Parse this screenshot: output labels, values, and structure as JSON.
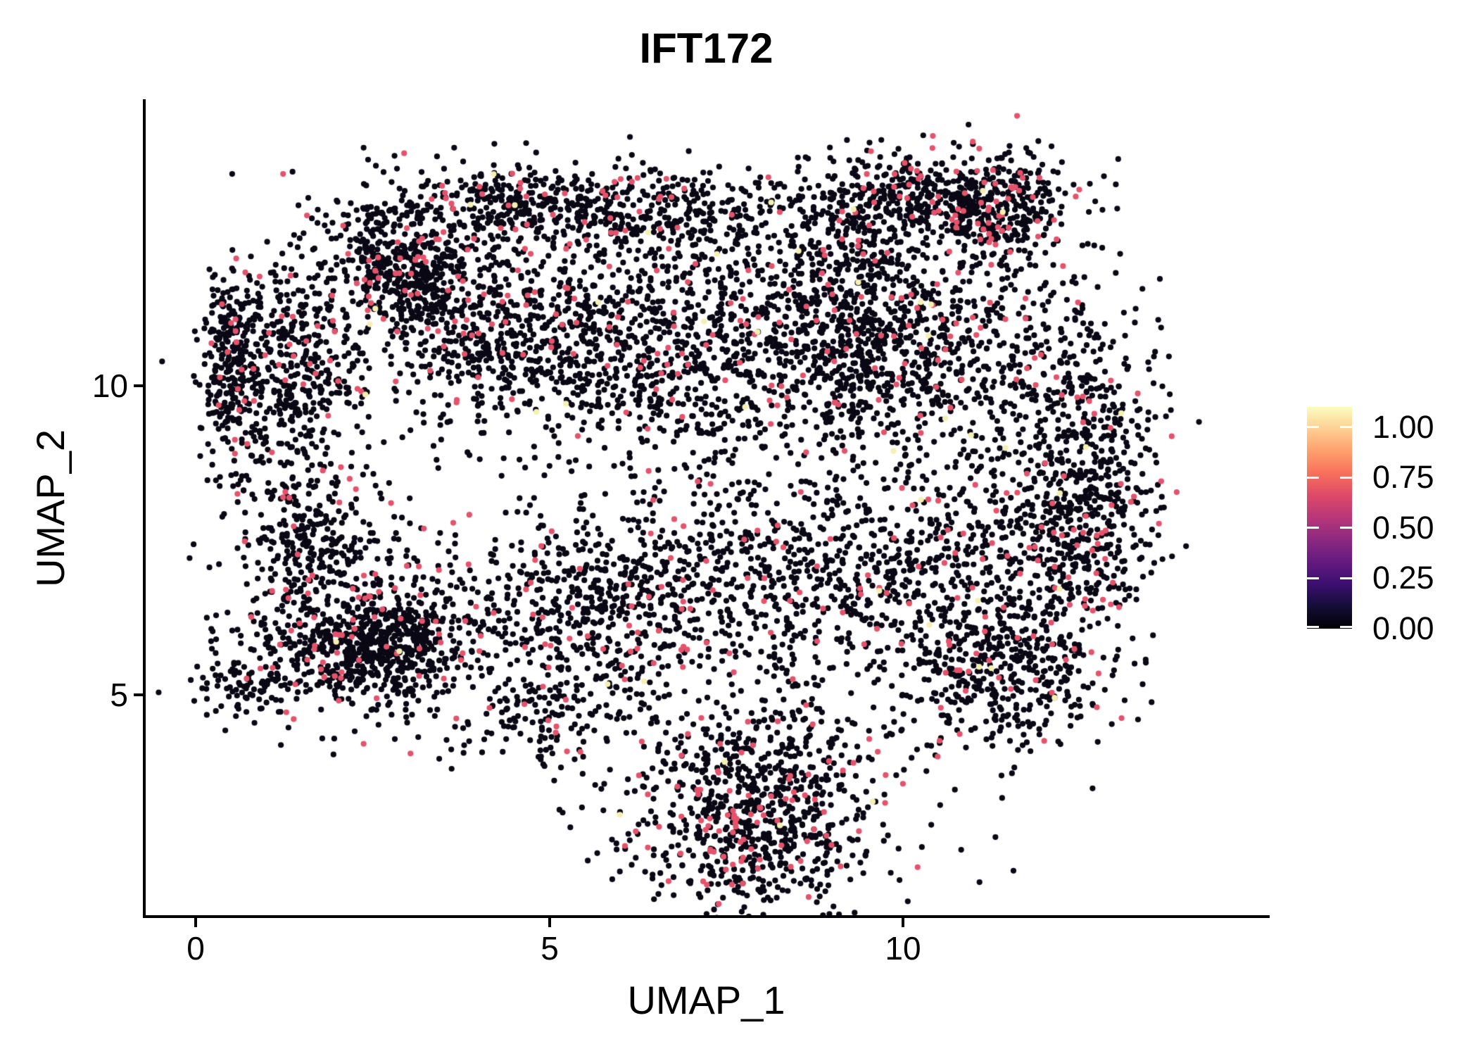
{
  "chart_data": {
    "type": "scatter",
    "title": "IFT172",
    "xlabel": "UMAP_1",
    "ylabel": "UMAP_2",
    "x_domain": [
      -0.73,
      15.16
    ],
    "y_domain": [
      1.41,
      14.61
    ],
    "grid": false,
    "background": "#ffffff",
    "axis_color": "#000000",
    "x_ticks": [
      {
        "value": 0,
        "label": "0"
      },
      {
        "value": 5,
        "label": "5"
      },
      {
        "value": 10,
        "label": "10"
      }
    ],
    "y_ticks": [
      {
        "value": 5,
        "label": "5"
      },
      {
        "value": 10,
        "label": "10"
      }
    ],
    "point_radius_px": 4.1,
    "n_points": 10190,
    "point_colors": {
      "black": "#0A0814",
      "pink": "#E4536B",
      "yellow": "#F5F0B2"
    },
    "color_meaning": {
      "black": "expression 0.00",
      "pink": "expression ~0.70",
      "yellow": "expression ~1.00"
    },
    "seed": 42,
    "default_pink_frac": 0.06,
    "default_yellow_frac": 0.004,
    "clusters": [
      {
        "cx": 0.5,
        "cy": 10.3,
        "sx": 0.2,
        "sy": 0.8,
        "n": 220,
        "pink": 0.08
      },
      {
        "cx": 1.25,
        "cy": 10.35,
        "sx": 0.55,
        "sy": 0.9,
        "n": 480,
        "pink": 0.06
      },
      {
        "cx": 1.6,
        "cy": 7.6,
        "sx": 0.55,
        "sy": 0.6,
        "n": 280,
        "pink": 0.06
      },
      {
        "cx": 2.3,
        "cy": 5.9,
        "sx": 0.95,
        "sy": 0.65,
        "n": 550,
        "pink": 0.07
      },
      {
        "cx": 2.6,
        "cy": 5.8,
        "sx": 0.5,
        "sy": 0.4,
        "n": 300,
        "pink": 0.07
      },
      {
        "cx": 0.75,
        "cy": 5.1,
        "sx": 0.4,
        "sy": 0.25,
        "n": 80,
        "pink": 0.05
      },
      {
        "cx": 2.9,
        "cy": 11.9,
        "sx": 0.55,
        "sy": 0.7,
        "n": 560,
        "pink": 0.07
      },
      {
        "cx": 4.3,
        "cy": 13.1,
        "sx": 0.25,
        "sy": 0.25,
        "n": 60,
        "pink": 0.06
      },
      {
        "cx": 4.9,
        "cy": 12.9,
        "sx": 0.9,
        "sy": 0.35,
        "n": 280,
        "pink": 0.06
      },
      {
        "cx": 6.8,
        "cy": 12.7,
        "sx": 0.8,
        "sy": 0.4,
        "n": 240,
        "pink": 0.06
      },
      {
        "cx": 4.3,
        "cy": 10.9,
        "sx": 0.8,
        "sy": 0.85,
        "n": 520,
        "pink": 0.05
      },
      {
        "cx": 6.3,
        "cy": 10.7,
        "sx": 1.0,
        "sy": 0.95,
        "n": 600,
        "pink": 0.06
      },
      {
        "cx": 8.6,
        "cy": 10.6,
        "sx": 1.1,
        "sy": 1.0,
        "n": 650,
        "pink": 0.06
      },
      {
        "cx": 10.6,
        "cy": 10.4,
        "sx": 0.9,
        "sy": 0.9,
        "n": 450,
        "pink": 0.06
      },
      {
        "cx": 9.3,
        "cy": 11.5,
        "sx": 0.5,
        "sy": 0.85,
        "n": 250,
        "pink": 0.05
      },
      {
        "cx": 5.5,
        "cy": 6.4,
        "sx": 1.1,
        "sy": 0.8,
        "n": 600,
        "pink": 0.06
      },
      {
        "cx": 8.0,
        "cy": 6.9,
        "sx": 1.2,
        "sy": 0.9,
        "n": 500,
        "pink": 0.06
      },
      {
        "cx": 10.3,
        "cy": 7.0,
        "sx": 1.0,
        "sy": 0.9,
        "n": 400,
        "pink": 0.07
      },
      {
        "cx": 11.9,
        "cy": 7.4,
        "sx": 0.7,
        "sy": 1.2,
        "n": 300,
        "pink": 0.07
      },
      {
        "cx": 12.6,
        "cy": 8.6,
        "sx": 0.55,
        "sy": 1.6,
        "n": 600,
        "pink": 0.07
      },
      {
        "cx": 10.0,
        "cy": 13.1,
        "sx": 0.9,
        "sy": 0.35,
        "n": 330,
        "pink": 0.08
      },
      {
        "cx": 11.3,
        "cy": 12.9,
        "sx": 0.55,
        "sy": 0.45,
        "n": 360,
        "pink": 0.12
      },
      {
        "cx": 9.0,
        "cy": 12.5,
        "sx": 0.7,
        "sy": 0.45,
        "n": 120,
        "pink": 0.06
      },
      {
        "cx": 11.3,
        "cy": 5.3,
        "sx": 0.75,
        "sy": 0.6,
        "n": 350,
        "pink": 0.1
      },
      {
        "cx": 7.9,
        "cy": 3.9,
        "sx": 1.15,
        "sy": 0.75,
        "n": 450,
        "pink": 0.1
      },
      {
        "cx": 7.9,
        "cy": 2.7,
        "sx": 0.85,
        "sy": 0.6,
        "n": 480,
        "pink": 0.12
      },
      {
        "cx": 4.9,
        "cy": 4.7,
        "sx": 0.75,
        "sy": 0.45,
        "n": 130,
        "pink": 0.08
      }
    ],
    "legend": {
      "position": "right",
      "range": [
        0,
        1.1
      ],
      "ticks": [
        {
          "value": 1.0,
          "label": "1.00"
        },
        {
          "value": 0.75,
          "label": "0.75"
        },
        {
          "value": 0.5,
          "label": "0.50"
        },
        {
          "value": 0.25,
          "label": "0.25"
        },
        {
          "value": 0.0,
          "label": "0.00"
        }
      ],
      "gradient_stops": [
        "#000004",
        "#140E36",
        "#3B0F70",
        "#641A80",
        "#8C2981",
        "#B73779",
        "#DE4968",
        "#F7705C",
        "#FE9F6D",
        "#FECF92",
        "#FCFDBF"
      ]
    }
  }
}
